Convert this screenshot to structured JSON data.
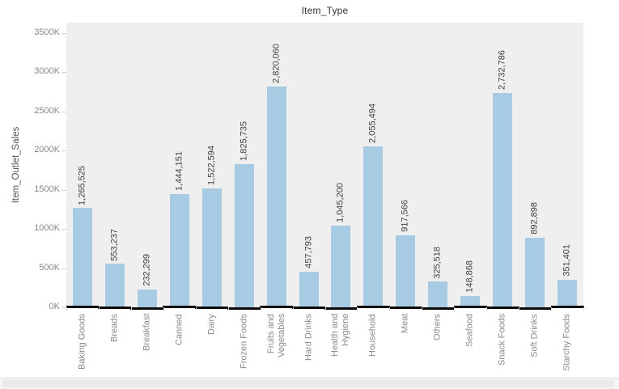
{
  "chart_data": {
    "type": "bar",
    "title": "Item_Type",
    "ylabel": "Item_Outlet_Sales",
    "xlabel": "",
    "categories": [
      "Baking Goods",
      "Breads",
      "Breakfast",
      "Canned",
      "Dairy",
      "Frozen Foods",
      "Fruits and Vegetables",
      "Hard Drinks",
      "Health and Hygiene",
      "Household",
      "Meat",
      "Others",
      "Seafood",
      "Snack Foods",
      "Soft Drinks",
      "Starchy Foods"
    ],
    "values": [
      1265525,
      553237,
      232299,
      1444151,
      1522594,
      1825735,
      2820060,
      457793,
      1045200,
      2055494,
      917566,
      325518,
      148868,
      2732786,
      892898,
      351401
    ],
    "value_labels": [
      "1,265,525",
      "553,237",
      "232,299",
      "1,444,151",
      "1,522,594",
      "1,825,735",
      "2,820,060",
      "457,793",
      "1,045,200",
      "2,055,494",
      "917,566",
      "325,518",
      "148,868",
      "2,732,786",
      "892,898",
      "351,401"
    ],
    "yticks": [
      "0K",
      "500K",
      "1000K",
      "1500K",
      "2000K",
      "2500K",
      "3000K",
      "3500K"
    ],
    "ytick_values": [
      0,
      500000,
      1000000,
      1500000,
      2000000,
      2500000,
      3000000,
      3500000
    ],
    "ylim": [
      0,
      3500000
    ],
    "grid": false,
    "legend": "none",
    "bar_color": "#a8cbe4",
    "plot_bg": "#efefef",
    "baseline_mark_color": "#0a0a0a",
    "label_color": "#8a8a8a",
    "value_label_color": "#424242"
  }
}
